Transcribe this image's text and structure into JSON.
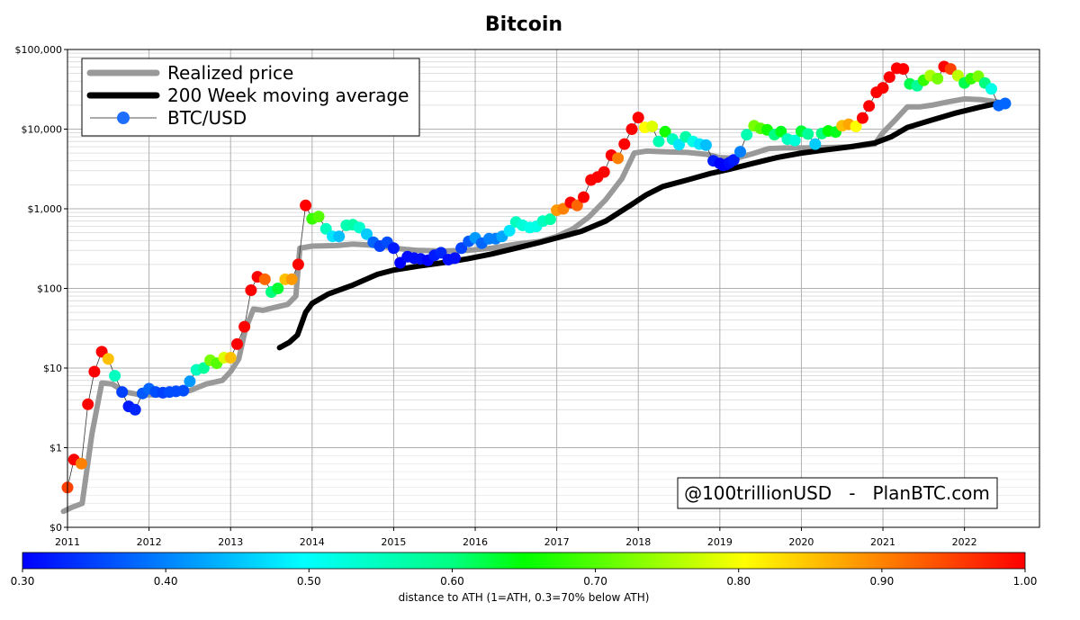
{
  "chart_data": {
    "type": "scatter",
    "title": "Bitcoin",
    "y_scale": "log-ish (with $0 baseline)",
    "y_ticks": [
      {
        "label": "$0",
        "value": 0
      },
      {
        "label": "$1",
        "value": 1
      },
      {
        "label": "$10",
        "value": 10
      },
      {
        "label": "$100",
        "value": 100
      },
      {
        "label": "$1,000",
        "value": 1000
      },
      {
        "label": "$10,000",
        "value": 10000
      },
      {
        "label": "$100,000",
        "value": 100000
      }
    ],
    "x_ticks": [
      "2011",
      "2012",
      "2013",
      "2014",
      "2015",
      "2016",
      "2017",
      "2018",
      "2019",
      "2020",
      "2021",
      "2022"
    ],
    "xlim": [
      2011.0,
      2022.92
    ],
    "ylim": [
      0,
      100000
    ],
    "grid": true,
    "legend_position": "top-left",
    "legend": [
      {
        "label": "Realized price",
        "color": "#999999",
        "style": "thick-line"
      },
      {
        "label": "200 Week moving average",
        "color": "#000000",
        "style": "thick-line"
      },
      {
        "label": "BTC/USD",
        "color": "#1e6fff",
        "style": "line-marker"
      }
    ],
    "credit": "@100trillionUSD   -   PlanBTC.com",
    "colorbar": {
      "label": "distance to ATH (1=ATH, 0.3=70% below ATH)",
      "min": 0.3,
      "max": 1.0,
      "ticks": [
        "0.30",
        "0.40",
        "0.50",
        "0.60",
        "0.70",
        "0.80",
        "0.90",
        "1.00"
      ]
    },
    "series": [
      {
        "name": "Realized price",
        "color": "#999999",
        "points": [
          [
            2010.95,
            0.2
          ],
          [
            2011.05,
            0.25
          ],
          [
            2011.18,
            0.3
          ],
          [
            2011.3,
            1.5
          ],
          [
            2011.42,
            6.5
          ],
          [
            2011.55,
            6.3
          ],
          [
            2011.7,
            5.0
          ],
          [
            2011.9,
            4.6
          ],
          [
            2012.1,
            4.6
          ],
          [
            2012.3,
            4.8
          ],
          [
            2012.5,
            5.2
          ],
          [
            2012.7,
            6.3
          ],
          [
            2012.9,
            7.0
          ],
          [
            2013.0,
            9.0
          ],
          [
            2013.1,
            13
          ],
          [
            2013.18,
            30
          ],
          [
            2013.28,
            55
          ],
          [
            2013.4,
            53
          ],
          [
            2013.55,
            58
          ],
          [
            2013.7,
            63
          ],
          [
            2013.8,
            80
          ],
          [
            2013.85,
            320
          ],
          [
            2014.0,
            340
          ],
          [
            2014.3,
            345
          ],
          [
            2014.5,
            360
          ],
          [
            2014.8,
            345
          ],
          [
            2015.0,
            320
          ],
          [
            2015.3,
            300
          ],
          [
            2015.6,
            295
          ],
          [
            2015.9,
            300
          ],
          [
            2016.2,
            320
          ],
          [
            2016.5,
            360
          ],
          [
            2016.8,
            390
          ],
          [
            2017.0,
            450
          ],
          [
            2017.2,
            560
          ],
          [
            2017.4,
            800
          ],
          [
            2017.6,
            1300
          ],
          [
            2017.8,
            2400
          ],
          [
            2017.95,
            5000
          ],
          [
            2018.1,
            5300
          ],
          [
            2018.3,
            5200
          ],
          [
            2018.6,
            5100
          ],
          [
            2018.85,
            4800
          ],
          [
            2019.0,
            4400
          ],
          [
            2019.2,
            4300
          ],
          [
            2019.4,
            4900
          ],
          [
            2019.6,
            5700
          ],
          [
            2019.8,
            5800
          ],
          [
            2020.1,
            5800
          ],
          [
            2020.4,
            5900
          ],
          [
            2020.6,
            6000
          ],
          [
            2020.9,
            6500
          ],
          [
            2021.0,
            9000
          ],
          [
            2021.15,
            13000
          ],
          [
            2021.3,
            19000
          ],
          [
            2021.45,
            19000
          ],
          [
            2021.6,
            20000
          ],
          [
            2021.8,
            22000
          ],
          [
            2022.0,
            24000
          ],
          [
            2022.2,
            23500
          ],
          [
            2022.4,
            22000
          ]
        ]
      },
      {
        "name": "200 Week moving average",
        "color": "#000000",
        "points": [
          [
            2013.6,
            18
          ],
          [
            2013.72,
            21
          ],
          [
            2013.82,
            26
          ],
          [
            2013.92,
            50
          ],
          [
            2014.0,
            65
          ],
          [
            2014.2,
            85
          ],
          [
            2014.5,
            110
          ],
          [
            2014.8,
            150
          ],
          [
            2015.0,
            170
          ],
          [
            2015.3,
            190
          ],
          [
            2015.6,
            210
          ],
          [
            2015.9,
            235
          ],
          [
            2016.2,
            270
          ],
          [
            2016.5,
            320
          ],
          [
            2016.8,
            380
          ],
          [
            2017.0,
            430
          ],
          [
            2017.3,
            520
          ],
          [
            2017.6,
            700
          ],
          [
            2017.9,
            1100
          ],
          [
            2018.1,
            1500
          ],
          [
            2018.3,
            1900
          ],
          [
            2018.6,
            2300
          ],
          [
            2018.9,
            2800
          ],
          [
            2019.1,
            3100
          ],
          [
            2019.4,
            3700
          ],
          [
            2019.7,
            4400
          ],
          [
            2020.0,
            5000
          ],
          [
            2020.3,
            5500
          ],
          [
            2020.6,
            6000
          ],
          [
            2020.9,
            6700
          ],
          [
            2021.1,
            8000
          ],
          [
            2021.3,
            10500
          ],
          [
            2021.6,
            13000
          ],
          [
            2021.9,
            16000
          ],
          [
            2022.2,
            19000
          ],
          [
            2022.4,
            21000
          ]
        ]
      },
      {
        "name": "BTC/USD",
        "color": "#1e6fff",
        "points": [
          [
            2011.0,
            0.5,
            0.95
          ],
          [
            2011.08,
            0.85,
            1.0
          ],
          [
            2011.17,
            0.8,
            0.9
          ],
          [
            2011.25,
            3.5,
            1.0
          ],
          [
            2011.33,
            9,
            1.0
          ],
          [
            2011.42,
            16,
            1.0
          ],
          [
            2011.5,
            13,
            0.85
          ],
          [
            2011.58,
            8,
            0.55
          ],
          [
            2011.67,
            5,
            0.35
          ],
          [
            2011.75,
            3.3,
            0.32
          ],
          [
            2011.83,
            3,
            0.33
          ],
          [
            2011.92,
            4.8,
            0.37
          ],
          [
            2012.0,
            5.5,
            0.38
          ],
          [
            2012.08,
            5,
            0.36
          ],
          [
            2012.17,
            4.9,
            0.35
          ],
          [
            2012.25,
            5,
            0.36
          ],
          [
            2012.33,
            5.1,
            0.36
          ],
          [
            2012.42,
            5.2,
            0.36
          ],
          [
            2012.5,
            6.8,
            0.42
          ],
          [
            2012.58,
            9.5,
            0.55
          ],
          [
            2012.67,
            10,
            0.58
          ],
          [
            2012.75,
            12.5,
            0.72
          ],
          [
            2012.83,
            11.5,
            0.7
          ],
          [
            2012.92,
            13.5,
            0.78
          ],
          [
            2013.0,
            13.5,
            0.85
          ],
          [
            2013.08,
            20,
            1.0
          ],
          [
            2013.17,
            33,
            1.0
          ],
          [
            2013.25,
            95,
            1.0
          ],
          [
            2013.33,
            140,
            1.0
          ],
          [
            2013.42,
            130,
            0.92
          ],
          [
            2013.5,
            90,
            0.6
          ],
          [
            2013.58,
            100,
            0.63
          ],
          [
            2013.67,
            130,
            0.85
          ],
          [
            2013.75,
            130,
            0.88
          ],
          [
            2013.83,
            200,
            1.0
          ],
          [
            2013.92,
            1100,
            1.0
          ],
          [
            2014.0,
            750,
            0.68
          ],
          [
            2014.08,
            800,
            0.7
          ],
          [
            2014.17,
            560,
            0.55
          ],
          [
            2014.25,
            450,
            0.48
          ],
          [
            2014.33,
            450,
            0.45
          ],
          [
            2014.42,
            620,
            0.56
          ],
          [
            2014.5,
            630,
            0.57
          ],
          [
            2014.58,
            580,
            0.54
          ],
          [
            2014.67,
            480,
            0.46
          ],
          [
            2014.75,
            380,
            0.38
          ],
          [
            2014.83,
            340,
            0.35
          ],
          [
            2014.92,
            380,
            0.36
          ],
          [
            2015.0,
            320,
            0.32
          ],
          [
            2015.08,
            210,
            0.3
          ],
          [
            2015.17,
            250,
            0.31
          ],
          [
            2015.25,
            240,
            0.31
          ],
          [
            2015.33,
            235,
            0.31
          ],
          [
            2015.42,
            225,
            0.3
          ],
          [
            2015.5,
            260,
            0.32
          ],
          [
            2015.58,
            280,
            0.33
          ],
          [
            2015.67,
            230,
            0.31
          ],
          [
            2015.75,
            240,
            0.31
          ],
          [
            2015.83,
            320,
            0.35
          ],
          [
            2015.92,
            390,
            0.37
          ],
          [
            2016.0,
            430,
            0.42
          ],
          [
            2016.08,
            370,
            0.38
          ],
          [
            2016.17,
            420,
            0.4
          ],
          [
            2016.25,
            420,
            0.4
          ],
          [
            2016.33,
            450,
            0.43
          ],
          [
            2016.42,
            530,
            0.48
          ],
          [
            2016.5,
            680,
            0.55
          ],
          [
            2016.58,
            620,
            0.53
          ],
          [
            2016.67,
            580,
            0.52
          ],
          [
            2016.75,
            600,
            0.52
          ],
          [
            2016.83,
            700,
            0.55
          ],
          [
            2016.92,
            740,
            0.57
          ],
          [
            2017.0,
            960,
            0.88
          ],
          [
            2017.08,
            1000,
            0.9
          ],
          [
            2017.17,
            1200,
            1.0
          ],
          [
            2017.25,
            1100,
            0.92
          ],
          [
            2017.33,
            1400,
            1.0
          ],
          [
            2017.42,
            2300,
            1.0
          ],
          [
            2017.5,
            2500,
            1.0
          ],
          [
            2017.58,
            2900,
            1.0
          ],
          [
            2017.67,
            4700,
            1.0
          ],
          [
            2017.75,
            4300,
            0.9
          ],
          [
            2017.83,
            6500,
            1.0
          ],
          [
            2017.92,
            10000,
            1.0
          ],
          [
            2018.0,
            14000,
            1.0
          ],
          [
            2018.08,
            10500,
            0.8
          ],
          [
            2018.17,
            10800,
            0.78
          ],
          [
            2018.25,
            7000,
            0.56
          ],
          [
            2018.33,
            9300,
            0.66
          ],
          [
            2018.42,
            7500,
            0.55
          ],
          [
            2018.5,
            6400,
            0.48
          ],
          [
            2018.58,
            8000,
            0.57
          ],
          [
            2018.67,
            7000,
            0.52
          ],
          [
            2018.75,
            6500,
            0.48
          ],
          [
            2018.83,
            6300,
            0.45
          ],
          [
            2018.92,
            4000,
            0.32
          ],
          [
            2019.0,
            3700,
            0.3
          ],
          [
            2019.04,
            3500,
            0.3
          ],
          [
            2019.08,
            3600,
            0.3
          ],
          [
            2019.12,
            3800,
            0.31
          ],
          [
            2019.17,
            4100,
            0.32
          ],
          [
            2019.25,
            5200,
            0.4
          ],
          [
            2019.33,
            8500,
            0.56
          ],
          [
            2019.42,
            11000,
            0.72
          ],
          [
            2019.5,
            10200,
            0.7
          ],
          [
            2019.58,
            9800,
            0.66
          ],
          [
            2019.67,
            8500,
            0.6
          ],
          [
            2019.75,
            9300,
            0.64
          ],
          [
            2019.83,
            7500,
            0.55
          ],
          [
            2019.92,
            7200,
            0.53
          ],
          [
            2020.0,
            9400,
            0.63
          ],
          [
            2020.08,
            8700,
            0.58
          ],
          [
            2020.17,
            6500,
            0.46
          ],
          [
            2020.25,
            8800,
            0.6
          ],
          [
            2020.33,
            9500,
            0.65
          ],
          [
            2020.42,
            9200,
            0.64
          ],
          [
            2020.5,
            11000,
            0.85
          ],
          [
            2020.58,
            11500,
            0.87
          ],
          [
            2020.67,
            10800,
            0.8
          ],
          [
            2020.75,
            13800,
            1.0
          ],
          [
            2020.83,
            19500,
            1.0
          ],
          [
            2020.92,
            29000,
            1.0
          ],
          [
            2021.0,
            33000,
            1.0
          ],
          [
            2021.08,
            45000,
            1.0
          ],
          [
            2021.17,
            58000,
            1.0
          ],
          [
            2021.25,
            57000,
            1.0
          ],
          [
            2021.33,
            37000,
            0.62
          ],
          [
            2021.42,
            35000,
            0.58
          ],
          [
            2021.5,
            41000,
            0.68
          ],
          [
            2021.58,
            47000,
            0.75
          ],
          [
            2021.67,
            43000,
            0.72
          ],
          [
            2021.75,
            61000,
            1.0
          ],
          [
            2021.83,
            57000,
            0.95
          ],
          [
            2021.92,
            47000,
            0.76
          ],
          [
            2022.0,
            38000,
            0.62
          ],
          [
            2022.08,
            43000,
            0.68
          ],
          [
            2022.17,
            46000,
            0.72
          ],
          [
            2022.25,
            38000,
            0.6
          ],
          [
            2022.33,
            32000,
            0.52
          ],
          [
            2022.42,
            19800,
            0.38
          ],
          [
            2022.5,
            21000,
            0.38
          ]
        ]
      }
    ]
  }
}
